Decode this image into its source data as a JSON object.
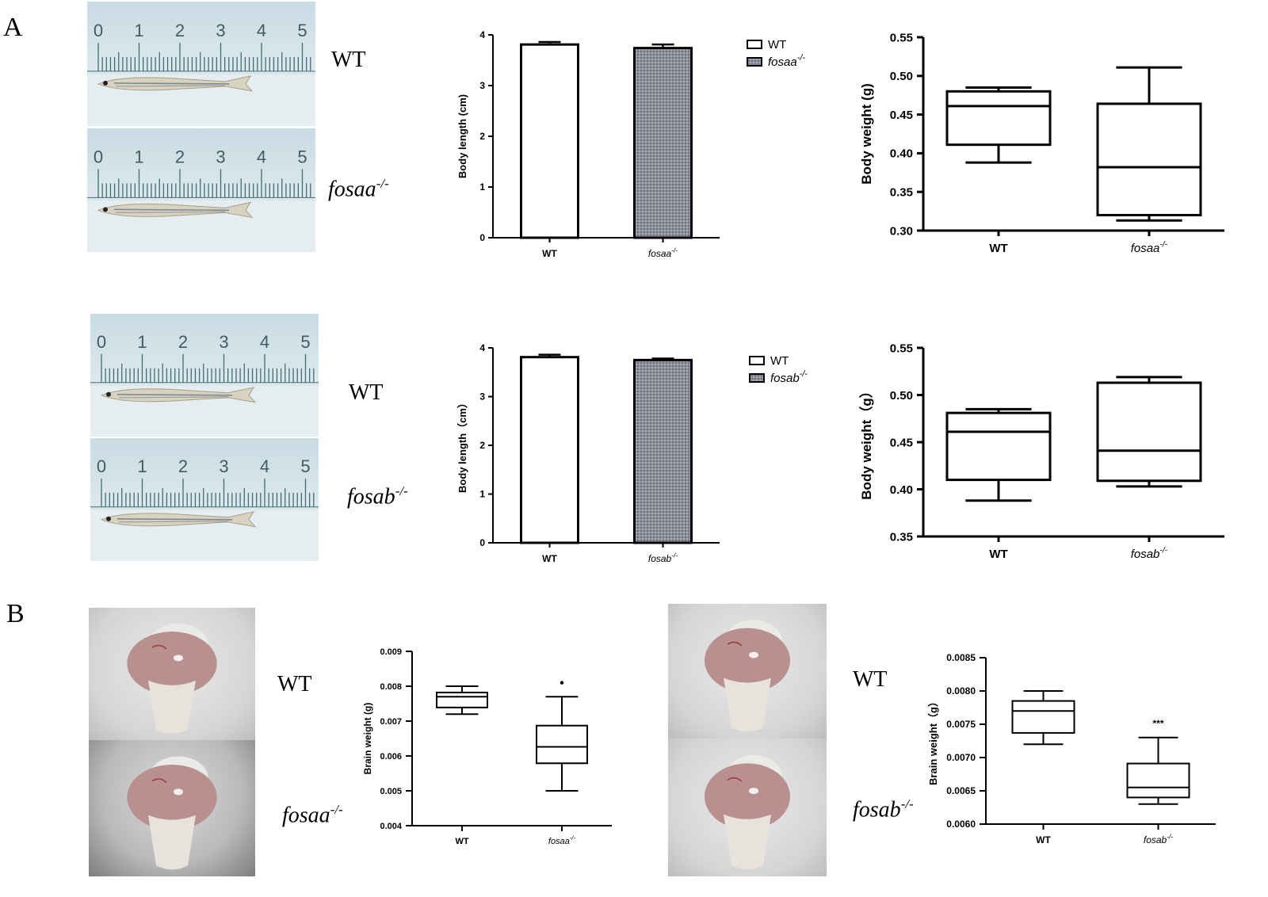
{
  "panels": {
    "A": "A",
    "B": "B"
  },
  "ruler": {
    "ticks": [
      "0",
      "1",
      "2",
      "3",
      "4",
      "5"
    ]
  },
  "labels": {
    "wt": "WT",
    "fosaa": "fosaa",
    "fosab": "fosab",
    "ko_sup": "-/-"
  },
  "colors": {
    "ko_fill": "#8d8f9a",
    "fish": "#d8d2c0",
    "ruler_ticks": "#3e6f76",
    "brain": "#b7908f"
  },
  "chart_data": [
    {
      "id": "length_fosaa",
      "type": "bar",
      "categories": [
        "WT",
        "fosaa-/-"
      ],
      "values": [
        3.81,
        3.74
      ],
      "errors": [
        0.05,
        0.07
      ],
      "ylabel": "Body length (cm)",
      "ylim": [
        0,
        4
      ],
      "yticks": [
        "0",
        "1",
        "2",
        "3",
        "4"
      ],
      "legend": [
        "WT",
        "fosaa-/-"
      ],
      "legend_position": "top-right"
    },
    {
      "id": "weight_fosaa",
      "type": "box",
      "categories": [
        "WT",
        "fosaa-/-"
      ],
      "boxes": [
        {
          "min": 0.388,
          "q1": 0.411,
          "median": 0.461,
          "q3": 0.48,
          "max": 0.485
        },
        {
          "min": 0.313,
          "q1": 0.32,
          "median": 0.382,
          "q3": 0.464,
          "max": 0.511
        }
      ],
      "ylabel": "Body weight (g)",
      "ylim": [
        0.3,
        0.55
      ],
      "yticks": [
        "0.30",
        "0.35",
        "0.40",
        "0.45",
        "0.50",
        "0.55"
      ]
    },
    {
      "id": "length_fosab",
      "type": "bar",
      "categories": [
        "WT",
        "fosab-/-"
      ],
      "values": [
        3.81,
        3.75
      ],
      "errors": [
        0.05,
        0.03
      ],
      "ylabel": "Body length（cm）",
      "ylim": [
        0,
        4
      ],
      "yticks": [
        "0",
        "1",
        "2",
        "3",
        "4"
      ],
      "legend": [
        "WT",
        "fosab-/-"
      ],
      "legend_position": "top-right"
    },
    {
      "id": "weight_fosab",
      "type": "box",
      "categories": [
        "WT",
        "fosab-/-"
      ],
      "boxes": [
        {
          "min": 0.388,
          "q1": 0.41,
          "median": 0.461,
          "q3": 0.481,
          "max": 0.485
        },
        {
          "min": 0.403,
          "q1": 0.409,
          "median": 0.441,
          "q3": 0.513,
          "max": 0.519
        }
      ],
      "ylabel": "Body weight（g）",
      "ylim": [
        0.35,
        0.55
      ],
      "yticks": [
        "0.35",
        "0.40",
        "0.45",
        "0.50",
        "0.55"
      ]
    },
    {
      "id": "brain_fosaa",
      "type": "box",
      "categories": [
        "WT",
        "fosaa-/-"
      ],
      "boxes": [
        {
          "min": 0.0072,
          "q1": 0.00739,
          "median": 0.0077,
          "q3": 0.00782,
          "max": 0.008
        },
        {
          "min": 0.005,
          "q1": 0.00579,
          "median": 0.00626,
          "q3": 0.00687,
          "max": 0.0077,
          "outlier": 0.0081
        }
      ],
      "ylabel": "Brain weight (g)",
      "ylim": [
        0.004,
        0.009
      ],
      "yticks": [
        "0.004",
        "0.005",
        "0.006",
        "0.007",
        "0.008",
        "0.009"
      ]
    },
    {
      "id": "brain_fosab",
      "type": "box",
      "categories": [
        "WT",
        "fosab-/-"
      ],
      "boxes": [
        {
          "min": 0.0072,
          "q1": 0.00737,
          "median": 0.0077,
          "q3": 0.00785,
          "max": 0.008
        },
        {
          "min": 0.0063,
          "q1": 0.0064,
          "median": 0.00655,
          "q3": 0.00691,
          "max": 0.0073
        }
      ],
      "annotation": "***",
      "ylabel": "Brain weight（g）",
      "ylim": [
        0.006,
        0.0085
      ],
      "yticks": [
        "0.0060",
        "0.0065",
        "0.0070",
        "0.0075",
        "0.0080",
        "0.0085"
      ]
    }
  ]
}
